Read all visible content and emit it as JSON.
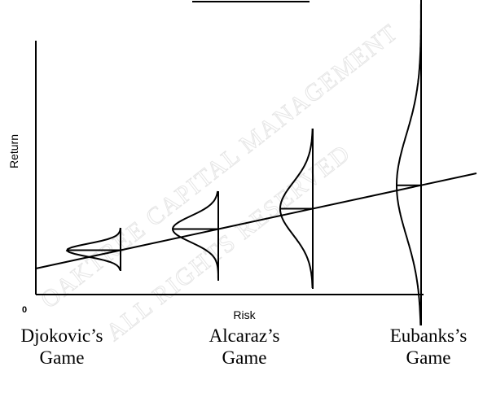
{
  "watermark": [
    "OAKTREE CAPITAL MANAGEMENT",
    "ALL RIGHTS RESERVED"
  ],
  "axes": {
    "y_label": "Return",
    "x_label": "Risk",
    "origin": "0"
  },
  "games": [
    {
      "name": "Djokovic’s",
      "line2": "Game"
    },
    {
      "name": "Alcaraz’s",
      "line2": "Game"
    },
    {
      "name": "Eubanks’s",
      "line2": "Game"
    }
  ]
}
